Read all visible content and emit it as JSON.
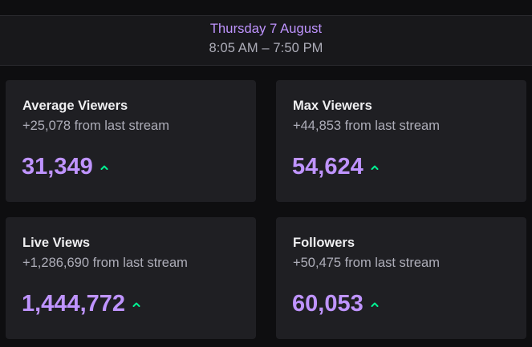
{
  "header": {
    "date": "Thursday 7 August",
    "time_range": "8:05 AM – 7:50 PM"
  },
  "cards": [
    {
      "title": "Average Viewers",
      "delta": "+25,078 from last stream",
      "value": "31,349",
      "trend_icon": "arrow-up-icon"
    },
    {
      "title": "Max Viewers",
      "delta": "+44,853 from last stream",
      "value": "54,624",
      "trend_icon": "arrow-up-icon"
    },
    {
      "title": "Live Views",
      "delta": "+1,286,690 from last stream",
      "value": "1,444,772",
      "trend_icon": "arrow-up-icon"
    },
    {
      "title": "Followers",
      "delta": "+50,475 from last stream",
      "value": "60,053",
      "trend_icon": "arrow-up-icon"
    }
  ],
  "colors": {
    "accent": "#bf94ff",
    "trend_up": "#00f593",
    "background": "#0e0e10",
    "card": "#1f1f23"
  }
}
